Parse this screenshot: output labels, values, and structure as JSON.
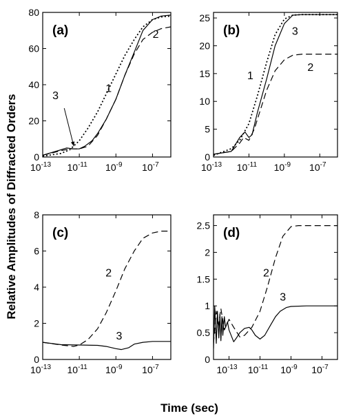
{
  "ylabel": "Relative Amplitudes of Diffracted Orders",
  "xlabel": "Time (sec)",
  "chart_data": [
    {
      "type": "line",
      "panel_label": "(a)",
      "x_scale": "log",
      "xlim": [
        1e-13,
        1e-06
      ],
      "ylim": [
        0,
        80
      ],
      "xticks": [
        {
          "base": "10",
          "exp": "-13",
          "v": 1e-13
        },
        {
          "base": "10",
          "exp": "-11",
          "v": 1e-11
        },
        {
          "base": "10",
          "exp": "-9",
          "v": 1e-09
        },
        {
          "base": "10",
          "exp": "-7",
          "v": 1e-07
        }
      ],
      "yticks": [
        {
          "v": 0,
          "label": "0"
        },
        {
          "v": 20,
          "label": "20"
        },
        {
          "v": 40,
          "label": "40"
        },
        {
          "v": 60,
          "label": "60"
        },
        {
          "v": 80,
          "label": "80"
        }
      ],
      "series": [
        {
          "id": "1",
          "style": "dotted",
          "x": [
            1e-13,
            1e-12,
            3e-12,
            1e-11,
            3e-11,
            1e-10,
            3e-10,
            1e-09,
            3e-09,
            1e-08,
            3e-08,
            1e-07,
            3e-07,
            1e-06
          ],
          "y": [
            0.5,
            2,
            4,
            9,
            16,
            25,
            35,
            46,
            56,
            65,
            72,
            76,
            77.5,
            78
          ]
        },
        {
          "id": "2",
          "style": "dashed",
          "x": [
            1e-13,
            1e-12,
            3e-12,
            1e-11,
            3e-11,
            1e-10,
            3e-10,
            1e-09,
            3e-09,
            1e-08,
            3e-08,
            1e-07,
            3e-07,
            1e-06
          ],
          "y": [
            1,
            3.5,
            4.5,
            4.5,
            6,
            12,
            21,
            32,
            45,
            57,
            65,
            69,
            71,
            72
          ]
        },
        {
          "id": "3",
          "style": "solid",
          "x": [
            1e-13,
            1e-12,
            2e-12,
            5e-12,
            1e-11,
            2e-11,
            5e-11,
            1e-10,
            3e-10,
            1e-09,
            3e-09,
            1e-08,
            3e-08,
            1e-07,
            3e-07,
            1e-06
          ],
          "y": [
            1,
            4,
            5,
            4.5,
            4.5,
            6,
            9,
            13,
            21,
            32,
            45,
            58,
            70,
            76,
            78,
            78.5
          ]
        }
      ],
      "labels": [
        {
          "series": "1",
          "text": "1",
          "x": 4e-10,
          "y": 36
        },
        {
          "series": "2",
          "text": "2",
          "x": 1.5e-07,
          "y": 66
        },
        {
          "series": "3",
          "text": "3",
          "x": 5e-13,
          "y": 32
        }
      ],
      "annotation_arrow": {
        "from": [
          1.5e-12,
          27
        ],
        "to": [
          5e-12,
          6
        ]
      }
    },
    {
      "type": "line",
      "panel_label": "(b)",
      "x_scale": "log",
      "xlim": [
        1e-13,
        1e-06
      ],
      "ylim": [
        0,
        26
      ],
      "xticks": [
        {
          "base": "10",
          "exp": "-13",
          "v": 1e-13
        },
        {
          "base": "10",
          "exp": "-11",
          "v": 1e-11
        },
        {
          "base": "10",
          "exp": "-9",
          "v": 1e-09
        },
        {
          "base": "10",
          "exp": "-7",
          "v": 1e-07
        }
      ],
      "yticks": [
        {
          "v": 0,
          "label": "0"
        },
        {
          "v": 5,
          "label": "5"
        },
        {
          "v": 10,
          "label": "10"
        },
        {
          "v": 15,
          "label": "15"
        },
        {
          "v": 20,
          "label": "20"
        },
        {
          "v": 25,
          "label": "25"
        }
      ],
      "series": [
        {
          "id": "1",
          "style": "dotted",
          "x": [
            1e-13,
            1e-12,
            3e-12,
            1e-11,
            3e-11,
            1e-10,
            3e-10,
            1e-09,
            3e-09,
            1e-08,
            1e-07,
            1e-06
          ],
          "y": [
            0.3,
            1.5,
            3,
            6,
            11,
            17,
            22,
            24.8,
            25.5,
            25.6,
            25.6,
            25.6
          ]
        },
        {
          "id": "2",
          "style": "dashed",
          "x": [
            1e-13,
            1e-12,
            3e-12,
            5e-12,
            1e-11,
            2e-11,
            5e-11,
            1e-10,
            3e-10,
            1e-09,
            3e-09,
            1e-08,
            1e-07,
            1e-06
          ],
          "y": [
            0.5,
            1,
            2.5,
            3.5,
            3,
            5,
            9,
            12,
            15.5,
            17.5,
            18.3,
            18.5,
            18.5,
            18.5
          ]
        },
        {
          "id": "3",
          "style": "solid",
          "x": [
            1e-13,
            1e-12,
            3e-12,
            6e-12,
            1e-11,
            1.5e-11,
            3e-11,
            1e-10,
            3e-10,
            1e-09,
            3e-09,
            1e-08,
            1e-07,
            1e-06
          ],
          "y": [
            0.5,
            1,
            3.5,
            4.5,
            3.5,
            4,
            8,
            14,
            20,
            24,
            25.5,
            25.6,
            25.6,
            25.6
          ]
        }
      ],
      "labels": [
        {
          "series": "1",
          "text": "1",
          "x": 1.2e-11,
          "y": 14
        },
        {
          "series": "2",
          "text": "2",
          "x": 3e-08,
          "y": 15.5
        },
        {
          "series": "3",
          "text": "3",
          "x": 4e-09,
          "y": 22
        }
      ]
    },
    {
      "type": "line",
      "panel_label": "(c)",
      "x_scale": "log",
      "xlim": [
        1e-13,
        1e-06
      ],
      "ylim": [
        0,
        8
      ],
      "xticks": [
        {
          "base": "10",
          "exp": "-13",
          "v": 1e-13
        },
        {
          "base": "10",
          "exp": "-11",
          "v": 1e-11
        },
        {
          "base": "10",
          "exp": "-9",
          "v": 1e-09
        },
        {
          "base": "10",
          "exp": "-7",
          "v": 1e-07
        }
      ],
      "yticks": [
        {
          "v": 0,
          "label": "0"
        },
        {
          "v": 2,
          "label": "2"
        },
        {
          "v": 4,
          "label": "4"
        },
        {
          "v": 6,
          "label": "6"
        },
        {
          "v": 8,
          "label": "8"
        }
      ],
      "series": [
        {
          "id": "2",
          "style": "dashed",
          "x": [
            1e-13,
            1e-12,
            5e-12,
            1e-11,
            3e-11,
            1e-10,
            3e-10,
            1e-09,
            3e-09,
            1e-08,
            3e-08,
            1e-07,
            3e-07,
            1e-06
          ],
          "y": [
            0.95,
            0.8,
            0.72,
            0.8,
            1.1,
            1.7,
            2.6,
            3.8,
            5.0,
            6.0,
            6.7,
            7.0,
            7.1,
            7.1
          ]
        },
        {
          "id": "3",
          "style": "solid",
          "x": [
            1e-13,
            1e-12,
            1e-11,
            1e-10,
            3e-10,
            1e-09,
            2e-09,
            5e-09,
            1e-08,
            3e-08,
            1e-07,
            1e-06
          ],
          "y": [
            0.95,
            0.82,
            0.8,
            0.78,
            0.72,
            0.6,
            0.55,
            0.65,
            0.85,
            0.95,
            1.0,
            1.0
          ]
        }
      ],
      "labels": [
        {
          "series": "2",
          "text": "2",
          "x": 4e-10,
          "y": 4.6
        },
        {
          "series": "3",
          "text": "3",
          "x": 1.5e-09,
          "y": 1.1
        }
      ]
    },
    {
      "type": "line",
      "panel_label": "(d)",
      "x_scale": "log",
      "xlim": [
        1e-14,
        1e-06
      ],
      "ylim": [
        0,
        2.7
      ],
      "xticks": [
        {
          "base": "10",
          "exp": "-13",
          "v": 1e-13
        },
        {
          "base": "10",
          "exp": "-11",
          "v": 1e-11
        },
        {
          "base": "10",
          "exp": "-9",
          "v": 1e-09
        },
        {
          "base": "10",
          "exp": "-7",
          "v": 1e-07
        }
      ],
      "yticks": [
        {
          "v": 0,
          "label": "0"
        },
        {
          "v": 0.5,
          "label": "0.5"
        },
        {
          "v": 1,
          "label": "1"
        },
        {
          "v": 1.5,
          "label": "1.5"
        },
        {
          "v": 2,
          "label": "2"
        },
        {
          "v": 2.5,
          "label": "2.5"
        }
      ],
      "series": [
        {
          "id": "2",
          "style": "dashed",
          "x": [
            1e-14,
            1.5e-14,
            2e-14,
            3e-14,
            5e-14,
            1e-13,
            2e-13,
            5e-13,
            1e-12,
            3e-12,
            1e-11,
            3e-11,
            1e-10,
            3e-10,
            1e-09,
            3e-09,
            1e-08,
            1e-07,
            1e-06
          ],
          "y": [
            0.3,
            0.9,
            0.6,
            0.95,
            0.55,
            0.75,
            0.6,
            0.42,
            0.45,
            0.6,
            0.9,
            1.35,
            1.9,
            2.3,
            2.48,
            2.5,
            2.5,
            2.5,
            2.5
          ]
        },
        {
          "id": "3",
          "style": "solid",
          "x": [
            1e-14,
            1.2e-14,
            1.5e-14,
            1.8e-14,
            2.2e-14,
            2.6e-14,
            3e-14,
            3.5e-14,
            4e-14,
            5e-14,
            6e-14,
            8e-14,
            1e-13,
            1.5e-13,
            2e-13,
            3e-13,
            5e-13,
            1e-12,
            2e-12,
            3e-12,
            5e-12,
            1e-11,
            2e-11,
            5e-11,
            1e-10,
            2e-10,
            5e-10,
            1e-09,
            1e-08,
            1e-07,
            1e-06
          ],
          "y": [
            0.2,
            1.0,
            0.3,
            0.9,
            0.4,
            0.85,
            0.35,
            0.8,
            0.45,
            0.8,
            0.6,
            0.7,
            0.55,
            0.42,
            0.33,
            0.4,
            0.5,
            0.58,
            0.6,
            0.55,
            0.45,
            0.38,
            0.45,
            0.65,
            0.8,
            0.9,
            0.97,
            0.99,
            1.0,
            1.0,
            1.0
          ]
        }
      ],
      "labels": [
        {
          "series": "2",
          "text": "2",
          "x": 2.5e-11,
          "y": 1.55
        },
        {
          "series": "3",
          "text": "3",
          "x": 3e-10,
          "y": 1.1
        }
      ]
    }
  ]
}
